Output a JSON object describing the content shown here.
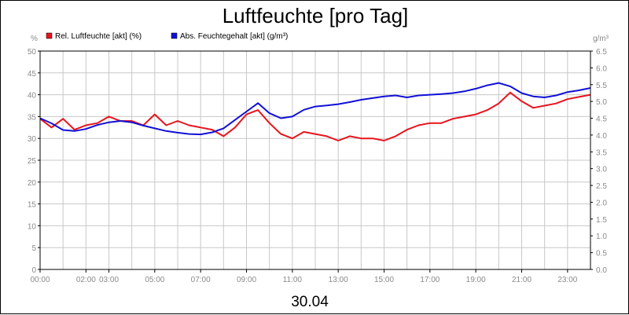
{
  "chart_data": {
    "type": "line",
    "title": "Luftfeuchte [pro Tag]",
    "date_label": "30.04",
    "y_left_unit": "%",
    "y_right_unit": "g/m³",
    "ylim_left": [
      0,
      50
    ],
    "ylim_right": [
      0,
      6.5
    ],
    "left_ticks": [
      "0",
      "5",
      "10",
      "15",
      "20",
      "25",
      "30",
      "35",
      "40",
      "45",
      "50"
    ],
    "right_ticks": [
      "0.0",
      "0.5",
      "1.0",
      "1.5",
      "2.0",
      "2.5",
      "3.0",
      "3.5",
      "4.0",
      "4.5",
      "5.0",
      "5.5",
      "6.0",
      "6.5"
    ],
    "x_ticks": [
      {
        "h": 0,
        "label": "00:00"
      },
      {
        "h": 2,
        "label": "02:00"
      },
      {
        "h": 3,
        "label": "03:00"
      },
      {
        "h": 5,
        "label": "05:00"
      },
      {
        "h": 7,
        "label": "07:00"
      },
      {
        "h": 9,
        "label": "09:00"
      },
      {
        "h": 11,
        "label": "11:00"
      },
      {
        "h": 13,
        "label": "13:00"
      },
      {
        "h": 15,
        "label": "15:00"
      },
      {
        "h": 17,
        "label": "17:00"
      },
      {
        "h": 19,
        "label": "19:00"
      },
      {
        "h": 21,
        "label": "21:00"
      },
      {
        "h": 23,
        "label": "23:00"
      }
    ],
    "x_range_hours": [
      0,
      24
    ],
    "grid": true,
    "legend_position": "top-left",
    "series": [
      {
        "name": "Rel. Luftfeuchte [akt] (%)",
        "color": "#e8141c",
        "axis": "left",
        "x": [
          0,
          0.5,
          1,
          1.5,
          2,
          2.5,
          3,
          3.5,
          4,
          4.5,
          5,
          5.5,
          6,
          6.5,
          7,
          7.5,
          8,
          8.5,
          9,
          9.5,
          10,
          10.5,
          11,
          11.5,
          12,
          12.5,
          13,
          13.5,
          14,
          14.5,
          15,
          15.5,
          16,
          16.5,
          17,
          17.5,
          18,
          18.5,
          19,
          19.5,
          20,
          20.5,
          21,
          21.5,
          22,
          22.5,
          23,
          23.5,
          24
        ],
        "values": [
          34.5,
          32.5,
          34.5,
          32.0,
          33.0,
          33.5,
          35.0,
          34.0,
          34.0,
          33.0,
          35.5,
          33.0,
          34.0,
          33.0,
          32.5,
          32.0,
          30.5,
          32.5,
          35.5,
          36.5,
          33.5,
          31.0,
          30.0,
          31.5,
          31.0,
          30.5,
          29.5,
          30.5,
          30.0,
          30.0,
          29.5,
          30.5,
          32.0,
          33.0,
          33.5,
          33.5,
          34.5,
          35.0,
          35.5,
          36.5,
          38.0,
          40.5,
          38.5,
          37.0,
          37.5,
          38.0,
          39.0,
          39.5,
          40.0
        ]
      },
      {
        "name": "Abs. Feuchtegehalt [akt] (g/m³)",
        "color": "#1010d8",
        "axis": "right",
        "x": [
          0,
          0.5,
          1,
          1.5,
          2,
          2.5,
          3,
          3.5,
          4,
          4.5,
          5,
          5.5,
          6,
          6.5,
          7,
          7.5,
          8,
          8.5,
          9,
          9.5,
          10,
          10.5,
          11,
          11.5,
          12,
          12.5,
          13,
          13.5,
          14,
          14.5,
          15,
          15.5,
          16,
          16.5,
          17,
          17.5,
          18,
          18.5,
          19,
          19.5,
          20,
          20.5,
          21,
          21.5,
          22,
          22.5,
          23,
          23.5,
          24
        ],
        "values": [
          4.5,
          4.35,
          4.15,
          4.12,
          4.18,
          4.3,
          4.38,
          4.42,
          4.38,
          4.28,
          4.2,
          4.12,
          4.07,
          4.03,
          4.02,
          4.08,
          4.2,
          4.45,
          4.7,
          4.95,
          4.65,
          4.5,
          4.55,
          4.75,
          4.85,
          4.88,
          4.92,
          4.98,
          5.05,
          5.1,
          5.15,
          5.18,
          5.12,
          5.18,
          5.2,
          5.22,
          5.25,
          5.3,
          5.38,
          5.48,
          5.55,
          5.45,
          5.25,
          5.15,
          5.12,
          5.18,
          5.28,
          5.33,
          5.4
        ]
      }
    ]
  }
}
